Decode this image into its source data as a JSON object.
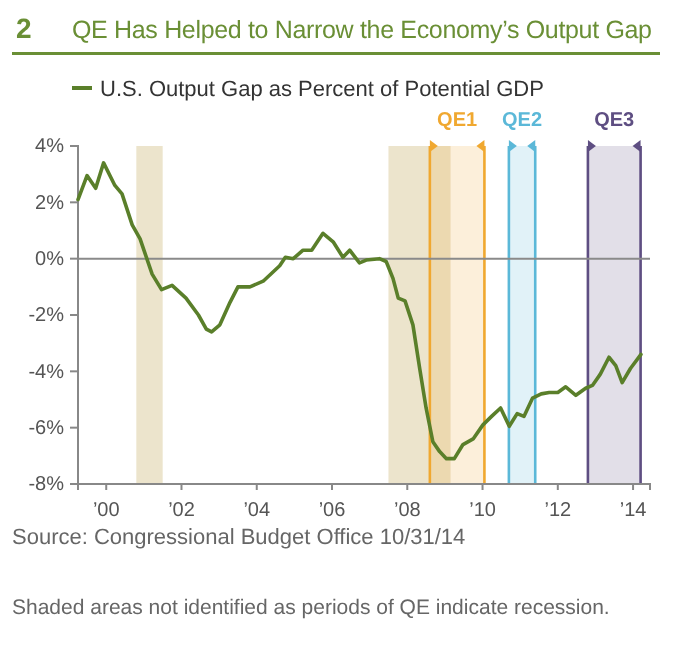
{
  "chart_data": {
    "type": "line",
    "title": "QE Has Helped to Narrow the Economy’s Output Gap",
    "legend": "top left",
    "annotations": [
      "2",
      "Source: Congressional Budget Office 10/31/14",
      "Shaded areas not identified as periods of QE indicate recession."
    ],
    "xlim": [
      1999.25,
      2014.45
    ],
    "xticks": [
      {
        "value": 2000,
        "label": "’00"
      },
      {
        "value": 2002,
        "label": "’02"
      },
      {
        "value": 2004,
        "label": "’04"
      },
      {
        "value": 2006,
        "label": "’06"
      },
      {
        "value": 2008,
        "label": "’08"
      },
      {
        "value": 2010,
        "label": "’10"
      },
      {
        "value": 2012,
        "label": "’12"
      },
      {
        "value": 2014,
        "label": "’14"
      }
    ],
    "ylim": [
      -8,
      4
    ],
    "yticks": [
      {
        "value": -8,
        "label": "-8%"
      },
      {
        "value": -6,
        "label": "-6%"
      },
      {
        "value": -4,
        "label": "-4%"
      },
      {
        "value": -2,
        "label": "-2%"
      },
      {
        "value": 0,
        "label": "0%"
      },
      {
        "value": 2,
        "label": "2%"
      },
      {
        "value": 4,
        "label": "4%"
      }
    ],
    "grid": false,
    "marker": "none",
    "line_style": "solid",
    "ref_lines": [
      {
        "axis": "y",
        "value": 0,
        "label": null,
        "color": "#8a8a8a"
      }
    ],
    "bands": [
      {
        "axis": "x",
        "from": 2000.8,
        "to": 2001.5,
        "label": null,
        "color": "#ece4cc"
      },
      {
        "axis": "x",
        "from": 2007.5,
        "to": 2009.15,
        "label": null,
        "color": "#ece4cc"
      },
      {
        "axis": "x",
        "from": 2008.6,
        "to": 2010.05,
        "label": "QE1",
        "color": "#f0a830"
      },
      {
        "axis": "x",
        "from": 2010.7,
        "to": 2011.4,
        "label": "QE2",
        "color": "#5bb8d8"
      },
      {
        "axis": "x",
        "from": 2012.8,
        "to": 2014.2,
        "label": "QE3",
        "color": "#5e4e82"
      }
    ],
    "series": [
      {
        "name": "U.S. Output Gap as Percent of Potential GDP",
        "color": "#5a7f2a",
        "x": [
          1999.25,
          1999.49,
          1999.72,
          1999.93,
          2000.23,
          2000.42,
          2000.69,
          2000.9,
          2001.22,
          2001.47,
          2001.75,
          2002.12,
          2002.45,
          2002.66,
          2002.8,
          2003.02,
          2003.29,
          2003.5,
          2003.82,
          2004.17,
          2004.61,
          2004.76,
          2004.97,
          2005.23,
          2005.46,
          2005.76,
          2006.03,
          2006.29,
          2006.47,
          2006.73,
          2006.91,
          2007.26,
          2007.44,
          2007.62,
          2007.76,
          2007.94,
          2008.15,
          2008.33,
          2008.5,
          2008.68,
          2008.86,
          2009.04,
          2009.25,
          2009.48,
          2009.75,
          2010.01,
          2010.24,
          2010.48,
          2010.71,
          2010.92,
          2011.1,
          2011.33,
          2011.56,
          2011.77,
          2012.0,
          2012.21,
          2012.48,
          2012.74,
          2012.92,
          2013.13,
          2013.36,
          2013.54,
          2013.71,
          2013.93,
          2014.21
        ],
        "values": [
          2.1,
          2.95,
          2.5,
          3.4,
          2.6,
          2.3,
          1.2,
          0.7,
          -0.55,
          -1.1,
          -0.95,
          -1.4,
          -2.0,
          -2.5,
          -2.6,
          -2.35,
          -1.55,
          -1.0,
          -1.0,
          -0.8,
          -0.25,
          0.05,
          0.0,
          0.3,
          0.3,
          0.9,
          0.6,
          0.05,
          0.3,
          -0.15,
          -0.05,
          0.0,
          -0.1,
          -0.7,
          -1.4,
          -1.5,
          -2.35,
          -3.9,
          -5.3,
          -6.5,
          -6.85,
          -7.1,
          -7.1,
          -6.6,
          -6.4,
          -5.9,
          -5.6,
          -5.3,
          -5.95,
          -5.5,
          -5.6,
          -4.95,
          -4.8,
          -4.75,
          -4.75,
          -4.55,
          -4.85,
          -4.6,
          -4.5,
          -4.1,
          -3.5,
          -3.8,
          -4.4,
          -3.9,
          -3.4
        ]
      }
    ]
  }
}
